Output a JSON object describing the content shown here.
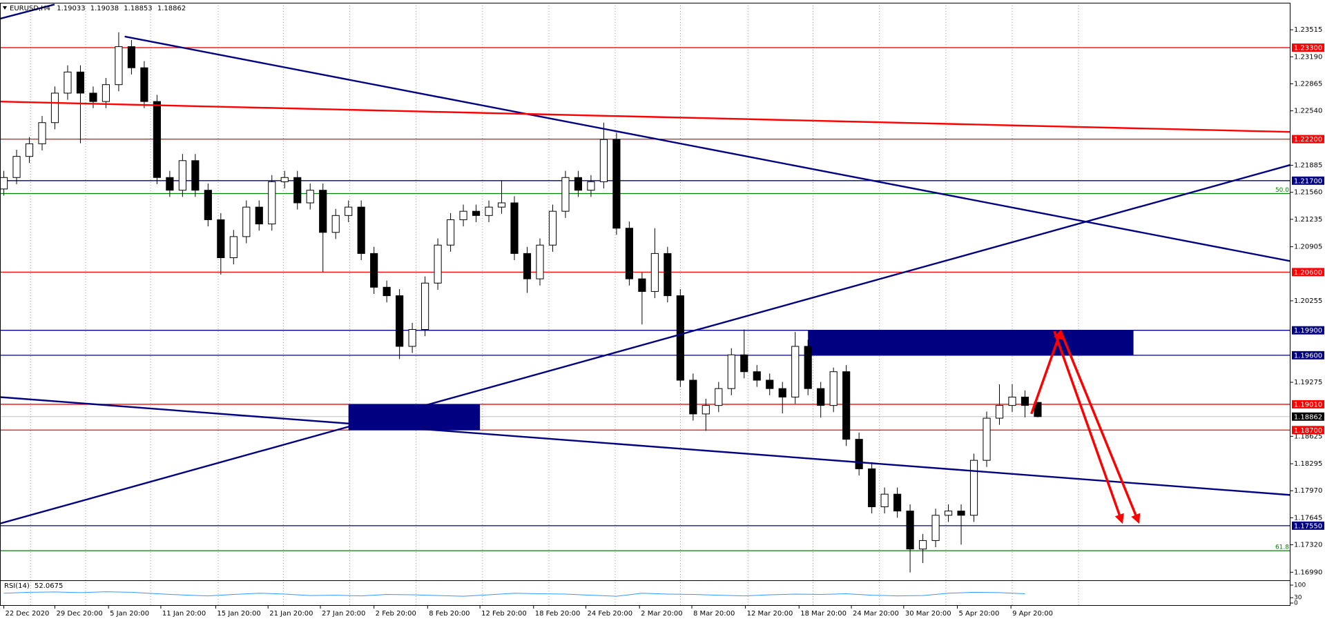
{
  "chart_data": {
    "type": "candlestick",
    "symbol": "EURUSD,H4",
    "header_values": [
      1.19033,
      1.19038,
      1.18853,
      1.18862
    ],
    "ohlc": [
      [
        1.216,
        1.21818,
        1.2152,
        1.21738
      ],
      [
        1.21738,
        1.22072,
        1.21658,
        1.21992
      ],
      [
        1.21992,
        1.22224,
        1.21912,
        1.22144
      ],
      [
        1.22144,
        1.22478,
        1.22064,
        1.22398
      ],
      [
        1.22398,
        1.22833,
        1.22318,
        1.22753
      ],
      [
        1.22753,
        1.23087,
        1.22673,
        1.23007
      ],
      [
        1.23007,
        1.23087,
        1.2215,
        1.22753
      ],
      [
        1.22753,
        1.22833,
        1.22572,
        1.22652
      ],
      [
        1.22652,
        1.22935,
        1.22572,
        1.22855
      ],
      [
        1.22855,
        1.23485,
        1.22775,
        1.23312
      ],
      [
        1.23312,
        1.23392,
        1.22978,
        1.23058
      ],
      [
        1.23058,
        1.23138,
        1.22572,
        1.22652
      ],
      [
        1.22652,
        1.22732,
        1.21658,
        1.21738
      ],
      [
        1.21738,
        1.21818,
        1.21505,
        1.21585
      ],
      [
        1.21585,
        1.22021,
        1.21505,
        1.21941
      ],
      [
        1.21941,
        1.22021,
        1.21505,
        1.21585
      ],
      [
        1.21585,
        1.21665,
        1.2115,
        1.2123
      ],
      [
        1.2123,
        1.2131,
        1.2057,
        1.20773
      ],
      [
        1.20773,
        1.21107,
        1.20693,
        1.21027
      ],
      [
        1.21027,
        1.21462,
        1.20947,
        1.21382
      ],
      [
        1.21382,
        1.21462,
        1.21099,
        1.21179
      ],
      [
        1.21179,
        1.21767,
        1.21099,
        1.21687
      ],
      [
        1.21687,
        1.21818,
        1.21607,
        1.21738
      ],
      [
        1.21738,
        1.21818,
        1.21353,
        1.21433
      ],
      [
        1.21433,
        1.21665,
        1.21353,
        1.21585
      ],
      [
        1.21585,
        1.21665,
        1.206,
        1.21078
      ],
      [
        1.21078,
        1.21361,
        1.20998,
        1.21281
      ],
      [
        1.21281,
        1.21462,
        1.21201,
        1.21382
      ],
      [
        1.21382,
        1.21462,
        1.20744,
        1.20824
      ],
      [
        1.20824,
        1.20904,
        1.20338,
        1.20418
      ],
      [
        1.20418,
        1.20498,
        1.20236,
        1.20316
      ],
      [
        1.20316,
        1.20396,
        1.19554,
        1.19707
      ],
      [
        1.19707,
        1.1999,
        1.19627,
        1.1991
      ],
      [
        1.1991,
        1.20548,
        1.1983,
        1.20468
      ],
      [
        1.20468,
        1.21005,
        1.20388,
        1.20925
      ],
      [
        1.20925,
        1.2131,
        1.20845,
        1.2123
      ],
      [
        1.2123,
        1.21412,
        1.2115,
        1.21332
      ],
      [
        1.21332,
        1.21412,
        1.21201,
        1.21281
      ],
      [
        1.21281,
        1.21462,
        1.21201,
        1.21382
      ],
      [
        1.21382,
        1.217,
        1.21302,
        1.21433
      ],
      [
        1.21433,
        1.21513,
        1.20744,
        1.20824
      ],
      [
        1.20824,
        1.20904,
        1.2035,
        1.20519
      ],
      [
        1.20519,
        1.21005,
        1.20439,
        1.20925
      ],
      [
        1.20925,
        1.21412,
        1.20845,
        1.21332
      ],
      [
        1.21332,
        1.21818,
        1.21252,
        1.21738
      ],
      [
        1.21738,
        1.21818,
        1.21505,
        1.21585
      ],
      [
        1.21585,
        1.21767,
        1.21505,
        1.21687
      ],
      [
        1.21687,
        1.22398,
        1.21607,
        1.22195
      ],
      [
        1.22195,
        1.22275,
        1.21048,
        1.21128
      ],
      [
        1.21128,
        1.21208,
        1.20439,
        1.20519
      ],
      [
        1.20519,
        1.20599,
        1.1997,
        1.20367
      ],
      [
        1.20367,
        1.21128,
        1.20287,
        1.20824
      ],
      [
        1.20824,
        1.20904,
        1.20236,
        1.20316
      ],
      [
        1.20316,
        1.20396,
        1.1922,
        1.193
      ],
      [
        1.193,
        1.1938,
        1.18814,
        1.18894
      ],
      [
        1.18894,
        1.19076,
        1.18691,
        1.18996
      ],
      [
        1.18996,
        1.19279,
        1.18916,
        1.19199
      ],
      [
        1.19199,
        1.19685,
        1.19119,
        1.19605
      ],
      [
        1.19605,
        1.1991,
        1.19322,
        1.19402
      ],
      [
        1.19402,
        1.19482,
        1.1922,
        1.193
      ],
      [
        1.193,
        1.1938,
        1.19119,
        1.19199
      ],
      [
        1.19199,
        1.19279,
        1.189,
        1.19097
      ],
      [
        1.19097,
        1.1988,
        1.19017,
        1.19707
      ],
      [
        1.19707,
        1.19787,
        1.19119,
        1.19199
      ],
      [
        1.19199,
        1.19279,
        1.1885,
        1.18996
      ],
      [
        1.18996,
        1.19452,
        1.18916,
        1.19402
      ],
      [
        1.19402,
        1.19482,
        1.18509,
        1.18589
      ],
      [
        1.18589,
        1.18669,
        1.18154,
        1.18234
      ],
      [
        1.18234,
        1.18314,
        1.17697,
        1.17777
      ],
      [
        1.17777,
        1.18009,
        1.17697,
        1.17929
      ],
      [
        1.17929,
        1.18009,
        1.17646,
        1.17726
      ],
      [
        1.17726,
        1.17806,
        1.16987,
        1.17269
      ],
      [
        1.17269,
        1.17451,
        1.171,
        1.17371
      ],
      [
        1.17371,
        1.17755,
        1.17291,
        1.17675
      ],
      [
        1.17675,
        1.17806,
        1.17595,
        1.17726
      ],
      [
        1.17726,
        1.17806,
        1.17322,
        1.17675
      ],
      [
        1.17675,
        1.18416,
        1.17595,
        1.18336
      ],
      [
        1.18336,
        1.18923,
        1.18256,
        1.18843
      ],
      [
        1.18843,
        1.1925,
        1.18763,
        1.18996
      ],
      [
        1.18996,
        1.1925,
        1.18916,
        1.19097
      ],
      [
        1.19097,
        1.19177,
        1.18853,
        1.18996
      ],
      [
        1.19033,
        1.19038,
        1.18853,
        1.18862
      ]
    ],
    "bull_color": "#ffffff",
    "bear_color": "#000000",
    "xlim": [
      -0.3,
      100.8
    ],
    "xticks": [
      {
        "value": 0,
        "label": "22 Dec 2020"
      },
      {
        "value": 4.0,
        "label": "29 Dec 20:00"
      },
      {
        "value": 8.2,
        "label": "5 Jan 20:00"
      },
      {
        "value": 12.3,
        "label": "11 Jan 20:00"
      },
      {
        "value": 16.6,
        "label": "15 Jan 20:00"
      },
      {
        "value": 20.7,
        "label": "21 Jan 20:00"
      },
      {
        "value": 24.8,
        "label": "27 Jan 20:00"
      },
      {
        "value": 29.0,
        "label": "2 Feb 20:00"
      },
      {
        "value": 33.2,
        "label": "8 Feb 20:00"
      },
      {
        "value": 37.3,
        "label": "12 Feb 20:00"
      },
      {
        "value": 41.5,
        "label": "18 Feb 20:00"
      },
      {
        "value": 45.6,
        "label": "24 Feb 20:00"
      },
      {
        "value": 49.8,
        "label": "2 Mar 20:00"
      },
      {
        "value": 53.9,
        "label": "8 Mar 20:00"
      },
      {
        "value": 58.1,
        "label": "12 Mar 20:00"
      },
      {
        "value": 62.3,
        "label": "18 Mar 20:00"
      },
      {
        "value": 66.4,
        "label": "24 Mar 20:00"
      },
      {
        "value": 70.5,
        "label": "30 Mar 20:00"
      },
      {
        "value": 74.7,
        "label": "5 Apr 20:00"
      },
      {
        "value": 78.9,
        "label": "9 Apr 20:00"
      }
    ],
    "xgrid": [
      2.1,
      6.4,
      11.5,
      16.8,
      21.9,
      27.1,
      32.3,
      37.5,
      42.7,
      47.9,
      53.0,
      58.3,
      63.4,
      68.6,
      73.8,
      79.0,
      84.2
    ],
    "ylim": [
      1.16893,
      1.2384
    ],
    "yticks": [
      {
        "value": 1.23515,
        "label": "1.23515"
      },
      {
        "value": 1.2319,
        "label": "1.23190"
      },
      {
        "value": 1.22865,
        "label": "1.22865"
      },
      {
        "value": 1.2254,
        "label": "1.22540"
      },
      {
        "value": 1.21885,
        "label": "1.21885"
      },
      {
        "value": 1.2156,
        "label": "1.21560"
      },
      {
        "value": 1.21235,
        "label": "1.21235"
      },
      {
        "value": 1.20905,
        "label": "1.20905"
      },
      {
        "value": 1.20255,
        "label": "1.20255"
      },
      {
        "value": 1.19275,
        "label": "1.19275"
      },
      {
        "value": 1.18625,
        "label": "1.18625"
      },
      {
        "value": 1.18295,
        "label": "1.18295"
      },
      {
        "value": 1.1797,
        "label": "1.17970"
      },
      {
        "value": 1.17645,
        "label": "1.17645"
      },
      {
        "value": 1.1732,
        "label": "1.17320"
      },
      {
        "value": 1.1699,
        "label": "1.16990"
      }
    ],
    "levels": [
      {
        "value": 1.233,
        "label": "1.23300",
        "color": "#ff0000"
      },
      {
        "value": 1.222,
        "label": "1.22200",
        "color": "#ff0000"
      },
      {
        "value": 1.217,
        "label": "1.21700",
        "color": "#000080"
      },
      {
        "value": 1.206,
        "label": "1.20600",
        "color": "#ff0000"
      },
      {
        "value": 1.199,
        "label": "1.19900",
        "color": "#000080"
      },
      {
        "value": 1.196,
        "label": "1.19600",
        "color": "#000080"
      },
      {
        "value": 1.1901,
        "label": "1.19010",
        "color": "#ff0000"
      },
      {
        "value": 1.187,
        "label": "1.18700",
        "color": "#ff0000"
      },
      {
        "value": 1.1755,
        "label": "1.17550",
        "color": "#000080"
      }
    ],
    "fib_levels": [
      {
        "value": 1.21545,
        "label": "50.0",
        "color": "#008000"
      },
      {
        "value": 1.17249,
        "label": "61.8",
        "color": "#008000"
      }
    ],
    "trendlines": [
      {
        "color": "#000080",
        "x": [
          -0.33,
          3.97
        ],
        "y": [
          1.23647,
          1.2382
        ]
      },
      {
        "color": "#000080",
        "x": [
          9.47,
          100.8
        ],
        "y": [
          1.23434,
          1.20732
        ]
      },
      {
        "color": "#000080",
        "x": [
          -0.33,
          100.8
        ],
        "y": [
          1.17574,
          1.2189
        ]
      },
      {
        "color": "#000080",
        "x": [
          -0.33,
          100.8
        ],
        "y": [
          1.19097,
          1.17919
        ]
      },
      {
        "color": "#ff0000",
        "x": [
          -0.33,
          100.8
        ],
        "y": [
          1.22652,
          1.22286
        ]
      }
    ],
    "rectangles": [
      {
        "color": "#000080",
        "x": [
          27.0,
          37.3
        ],
        "y": [
          1.1901,
          1.187
        ]
      },
      {
        "color": "#000080",
        "x": [
          63.0,
          88.5
        ],
        "y": [
          1.199,
          1.196
        ]
      }
    ],
    "arrows": [
      {
        "color": "#ff0000",
        "x": [
          80.5,
          82.8
        ],
        "y": [
          1.18895,
          1.19889
        ]
      },
      {
        "color": "#ff0000",
        "x": [
          82.3,
          87.6
        ],
        "y": [
          1.19889,
          1.17594
        ]
      },
      {
        "color": "#ff0000",
        "x": [
          82.8,
          88.9
        ],
        "y": [
          1.19889,
          1.17594
        ]
      }
    ],
    "rsi": {
      "label": "RSI(14)",
      "last": 52.0675,
      "color": "#3399ff",
      "ylim": [
        0,
        100
      ],
      "yticks": [
        100,
        30,
        0
      ],
      "x": [
        0,
        2,
        4,
        6,
        8,
        10,
        12,
        14,
        16,
        18,
        20,
        22,
        24,
        26,
        28,
        30,
        32,
        34,
        36,
        38,
        40,
        42,
        44,
        46,
        48,
        50,
        52,
        54,
        56,
        58,
        60,
        62,
        64,
        66,
        68,
        70,
        72,
        74,
        76,
        78,
        80
      ],
      "values": [
        55,
        60,
        62,
        58,
        63,
        60,
        52,
        45,
        40,
        48,
        55,
        50,
        42,
        44,
        40,
        48,
        46,
        42,
        38,
        46,
        55,
        52,
        50,
        44,
        38,
        55,
        50,
        48,
        44,
        40,
        46,
        50,
        48,
        52,
        44,
        40,
        42,
        55,
        60,
        58,
        52
      ]
    }
  }
}
